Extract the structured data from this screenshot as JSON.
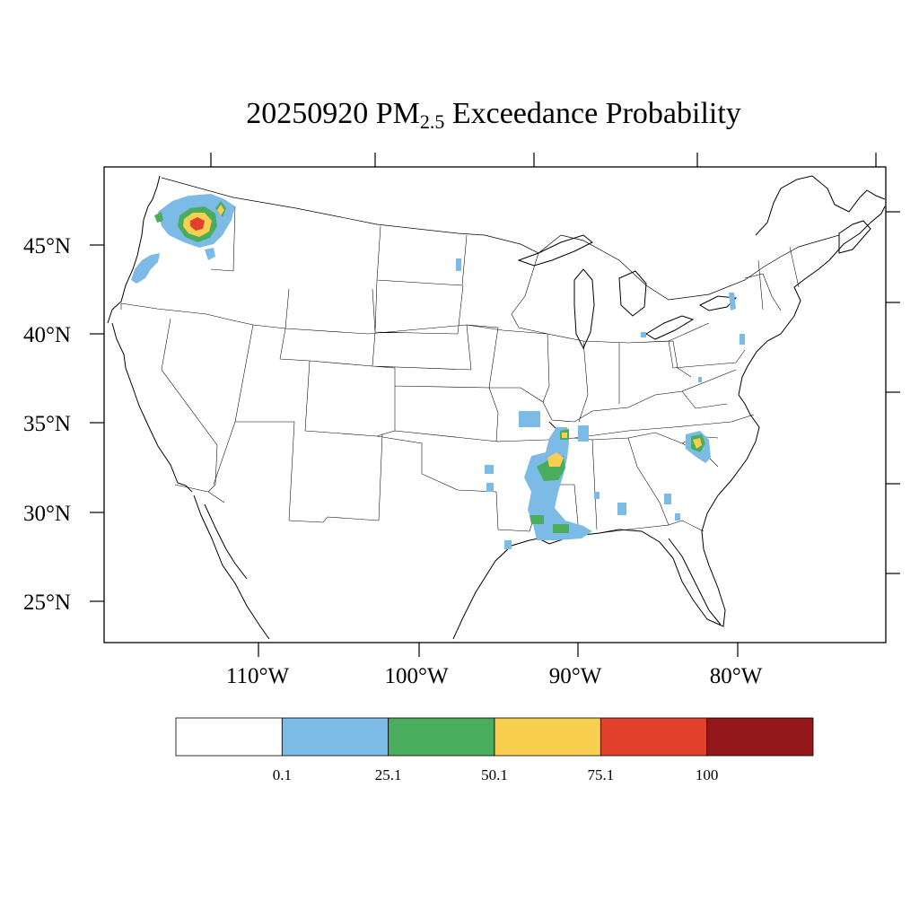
{
  "title": {
    "date": "20250920",
    "species": "PM",
    "species_sub": "2.5",
    "suffix": "Exceedance Probability"
  },
  "map": {
    "projection": "lambert-conformal",
    "region": "CONUS",
    "lat_labels": [
      "45°N",
      "40°N",
      "35°N",
      "30°N",
      "25°N"
    ],
    "lon_labels": [
      "110°W",
      "100°W",
      "90°W",
      "80°W"
    ]
  },
  "legend": {
    "placement": "bottom",
    "boundaries": [
      "0.1",
      "25.1",
      "50.1",
      "75.1",
      "100"
    ],
    "colors": [
      "#ffffff",
      "#7cbbe6",
      "#4aad5e",
      "#f9cf50",
      "#e1402a",
      "#94171c"
    ]
  },
  "colors": {
    "bin_low": "#7cbbe6",
    "bin_mid": "#4aad5e",
    "bin_high": "#f9cf50",
    "bin_very_high": "#e1402a",
    "bin_extreme": "#94171c"
  }
}
